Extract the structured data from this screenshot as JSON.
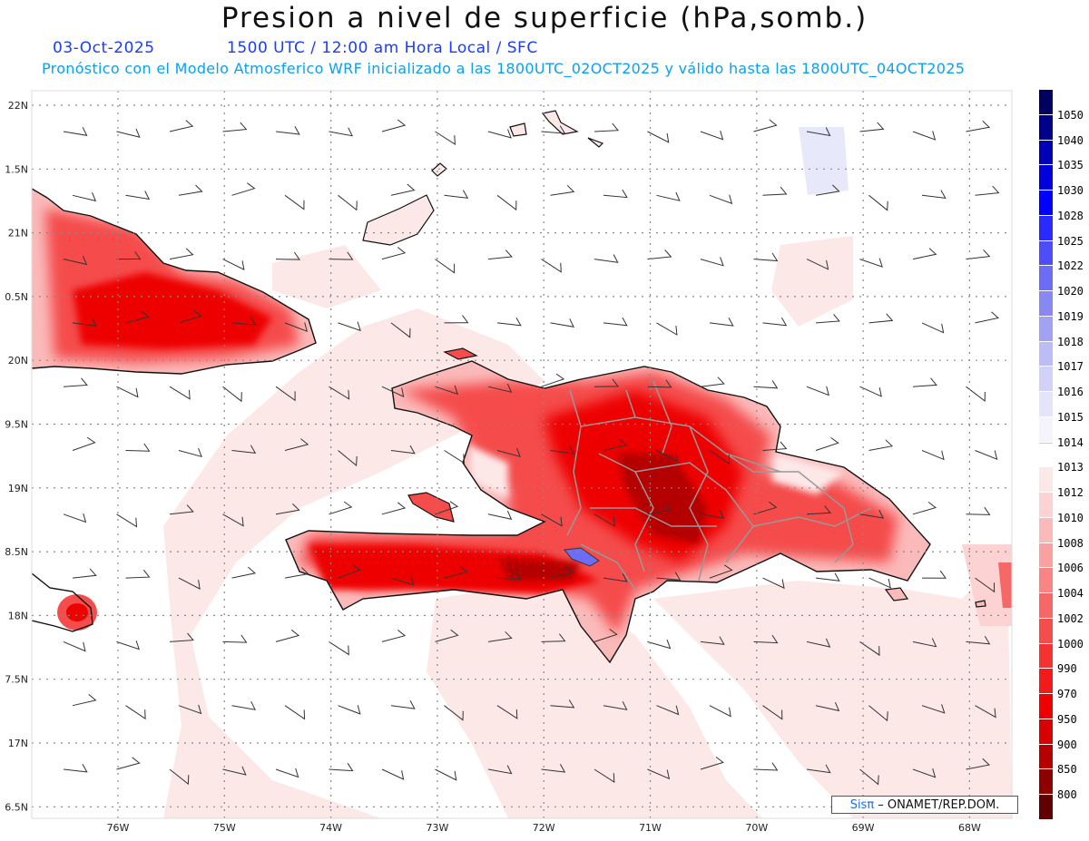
{
  "title": "Presion a nivel de superficie (hPa,somb.)",
  "date": "03-Oct-2025",
  "time_info": "1500 UTC / 12:00 am Hora Local / SFC",
  "model_info": "Pronóstico con el Modelo Atmosferico WRF inicializado a las 1800UTC_02OCT2025 y válido hasta las  1800UTC_04OCT2025",
  "lat_labels": [
    "22N",
    "1.5N",
    "21N",
    "0.5N",
    "20N",
    "9.5N",
    "19N",
    "8.5N",
    "18N",
    "7.5N",
    "17N",
    "6.5N"
  ],
  "lon_labels": [
    "76W",
    "75W",
    "74W",
    "73W",
    "72W",
    "71W",
    "70W",
    "69W",
    "68W"
  ],
  "legend": [
    {
      "label": "1050",
      "color": "#000060"
    },
    {
      "label": "1040",
      "color": "#00008a"
    },
    {
      "label": "1035",
      "color": "#0000b4"
    },
    {
      "label": "1030",
      "color": "#0000dc"
    },
    {
      "label": "1028",
      "color": "#0000ff"
    },
    {
      "label": "1025",
      "color": "#2a2aff"
    },
    {
      "label": "1022",
      "color": "#4e4ef8"
    },
    {
      "label": "1020",
      "color": "#6c6cf4"
    },
    {
      "label": "1019",
      "color": "#8888f2"
    },
    {
      "label": "1018",
      "color": "#a2a2f4"
    },
    {
      "label": "1017",
      "color": "#bcbcf6"
    },
    {
      "label": "1016",
      "color": "#d2d2f8"
    },
    {
      "label": "1015",
      "color": "#e4e4fa"
    },
    {
      "label": "1014",
      "color": "#f4f4fd"
    },
    {
      "label": "1013",
      "color": "#ffffff"
    },
    {
      "label": "1012",
      "color": "#fde8e8"
    },
    {
      "label": "1010",
      "color": "#fcd2d2"
    },
    {
      "label": "1008",
      "color": "#fbbaba"
    },
    {
      "label": "1006",
      "color": "#f9a0a0"
    },
    {
      "label": "1004",
      "color": "#f88484"
    },
    {
      "label": "1002",
      "color": "#f66868"
    },
    {
      "label": "1000",
      "color": "#f54c4c"
    },
    {
      "label": "990",
      "color": "#f43232"
    },
    {
      "label": "970",
      "color": "#f21a1a"
    },
    {
      "label": "950",
      "color": "#ee0000"
    },
    {
      "label": "900",
      "color": "#d80000"
    },
    {
      "label": "850",
      "color": "#b40000"
    },
    {
      "label": "800",
      "color": "#8c0000"
    },
    {
      "label": "",
      "color": "#600000"
    }
  ],
  "credit_sis": "Sisπ",
  "credit_text": " – ONAMET/REP.DOM."
}
